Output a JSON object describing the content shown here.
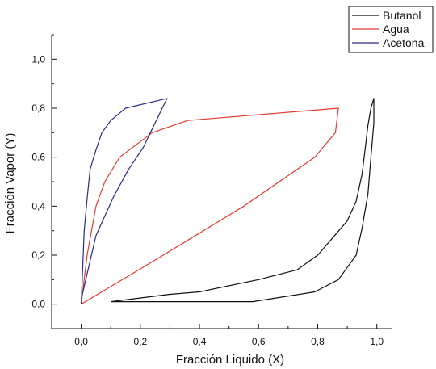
{
  "chart_data": {
    "type": "line",
    "xlabel": "Fracción Liquido (X)",
    "ylabel": "Fracción Vapor (Y)",
    "xlim": [
      -0.1,
      1.05
    ],
    "ylim": [
      -0.1,
      1.1
    ],
    "xticks": [
      "0,0",
      "0,2",
      "0,4",
      "0,6",
      "0,8",
      "1,0"
    ],
    "xtick_values": [
      0.0,
      0.2,
      0.4,
      0.6,
      0.8,
      1.0
    ],
    "yticks": [
      "0,0",
      "0,2",
      "0,4",
      "0,6",
      "0,8",
      "1,0"
    ],
    "ytick_values": [
      0.0,
      0.2,
      0.4,
      0.6,
      0.8,
      1.0
    ],
    "grid": false,
    "legend_position": "top-right",
    "series": [
      {
        "name": "Butanol",
        "color": "#111111",
        "points": [
          [
            0.1,
            0.01
          ],
          [
            0.3,
            0.04
          ],
          [
            0.4,
            0.05
          ],
          [
            0.6,
            0.1
          ],
          [
            0.73,
            0.14
          ],
          [
            0.8,
            0.2
          ],
          [
            0.85,
            0.27
          ],
          [
            0.9,
            0.34
          ],
          [
            0.93,
            0.42
          ],
          [
            0.95,
            0.53
          ],
          [
            0.96,
            0.63
          ],
          [
            0.97,
            0.73
          ],
          [
            0.98,
            0.8
          ],
          [
            0.99,
            0.84
          ],
          [
            0.99,
            0.74
          ],
          [
            0.98,
            0.6
          ],
          [
            0.97,
            0.45
          ],
          [
            0.95,
            0.31
          ],
          [
            0.93,
            0.2
          ],
          [
            0.9,
            0.15
          ],
          [
            0.87,
            0.1
          ],
          [
            0.79,
            0.05
          ],
          [
            0.58,
            0.01
          ],
          [
            0.1,
            0.01
          ]
        ]
      },
      {
        "name": "Agua",
        "color": "#e8392f",
        "points": [
          [
            0.0,
            0.0
          ],
          [
            0.02,
            0.2
          ],
          [
            0.05,
            0.4
          ],
          [
            0.08,
            0.5
          ],
          [
            0.13,
            0.6
          ],
          [
            0.24,
            0.7
          ],
          [
            0.36,
            0.75
          ],
          [
            0.87,
            0.8
          ],
          [
            0.86,
            0.7
          ],
          [
            0.79,
            0.6
          ],
          [
            0.55,
            0.4
          ],
          [
            0.25,
            0.18
          ],
          [
            0.0,
            0.0
          ]
        ]
      },
      {
        "name": "Acetona",
        "color": "#2a2a8c",
        "points": [
          [
            0.0,
            0.0
          ],
          [
            0.01,
            0.3
          ],
          [
            0.02,
            0.43
          ],
          [
            0.03,
            0.55
          ],
          [
            0.05,
            0.63
          ],
          [
            0.07,
            0.7
          ],
          [
            0.1,
            0.75
          ],
          [
            0.15,
            0.8
          ],
          [
            0.29,
            0.84
          ],
          [
            0.27,
            0.79
          ],
          [
            0.25,
            0.74
          ],
          [
            0.21,
            0.64
          ],
          [
            0.16,
            0.55
          ],
          [
            0.11,
            0.44
          ],
          [
            0.05,
            0.28
          ],
          [
            0.0,
            0.02
          ]
        ]
      }
    ]
  }
}
